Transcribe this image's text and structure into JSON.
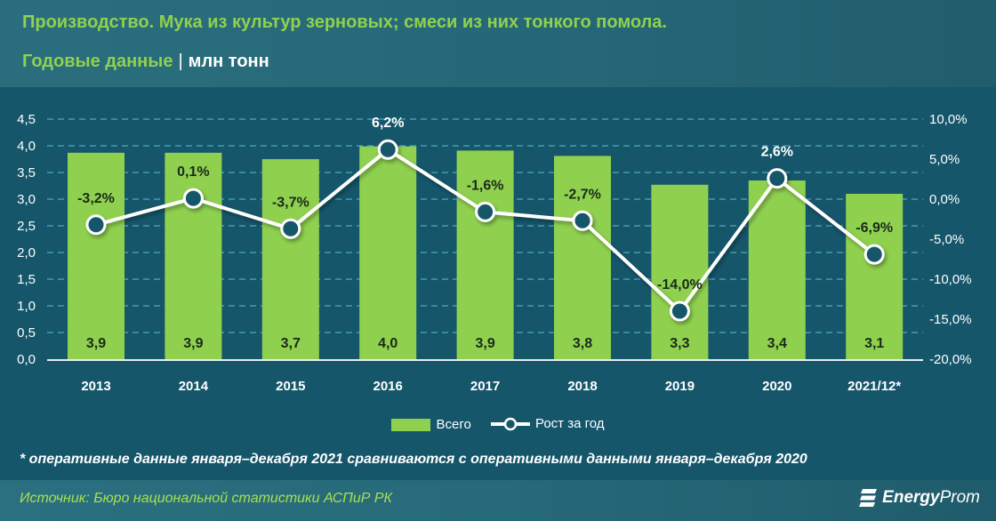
{
  "header": {
    "title": "Производство. Мука из культур зерновых; смеси из них тонкого помола.",
    "subtitle": "Годовые данные",
    "separator": "|",
    "unit": "млн тонн"
  },
  "colors": {
    "background": "#15566a",
    "header_bg": "#2a6e7e",
    "bar": "#8fd14f",
    "line": "#ffffff",
    "marker_fill": "#15566a",
    "title": "#8fd14f",
    "source": "#a6e04f",
    "grid": "#4fa8bf"
  },
  "chart_data": {
    "type": "bar+line",
    "title": "Производство. Мука из культур зерновых; смеси из них тонкого помола.",
    "subtitle": "Годовые данные | млн тонн",
    "categories": [
      "2013",
      "2014",
      "2015",
      "2016",
      "2017",
      "2018",
      "2019",
      "2020",
      "2021/12*"
    ],
    "series": [
      {
        "name": "Всего",
        "type": "bar",
        "axis": "left",
        "values": [
          3.9,
          3.9,
          3.7,
          4.0,
          3.9,
          3.8,
          3.3,
          3.4,
          3.1
        ],
        "labels": [
          "3,9",
          "3,9",
          "3,7",
          "4,0",
          "3,9",
          "3,8",
          "3,3",
          "3,4",
          "3,1"
        ],
        "plot_heights": [
          3.87,
          3.87,
          3.75,
          3.99,
          3.91,
          3.81,
          3.27,
          3.35,
          3.1
        ]
      },
      {
        "name": "Рост за год",
        "type": "line",
        "axis": "right",
        "values": [
          -3.2,
          0.1,
          -3.7,
          6.2,
          -1.6,
          -2.7,
          -14.0,
          2.6,
          -6.9
        ],
        "labels": [
          "-3,2%",
          "0,1%",
          "-3,7%",
          "6,2%",
          "-1,6%",
          "-2,7%",
          "-14,0%",
          "2,6%",
          "-6,9%"
        ]
      }
    ],
    "left_axis": {
      "ylim": [
        0,
        4.5
      ],
      "ticks": [
        "0,0",
        "0,5",
        "1,0",
        "1,5",
        "2,0",
        "2,5",
        "3,0",
        "3,5",
        "4,0",
        "4,5"
      ]
    },
    "right_axis": {
      "ylim": [
        -20,
        10
      ],
      "ticks": [
        "-20,0%",
        "-15,0%",
        "-10,0%",
        "-5,0%",
        "0,0%",
        "5,0%",
        "10,0%"
      ]
    },
    "grid": true,
    "legend_position": "bottom"
  },
  "legend": {
    "items": [
      {
        "label": "Всего"
      },
      {
        "label": "Рост за год"
      }
    ]
  },
  "footnote": "* оперативные данные января–декабря 2021 сравниваются с оперативными данными января–декабря 2020",
  "footer": {
    "source": "Источник: Бюро национальной статистики АСПиР РК",
    "logo_energy": "Energy",
    "logo_prom": "Prom"
  }
}
